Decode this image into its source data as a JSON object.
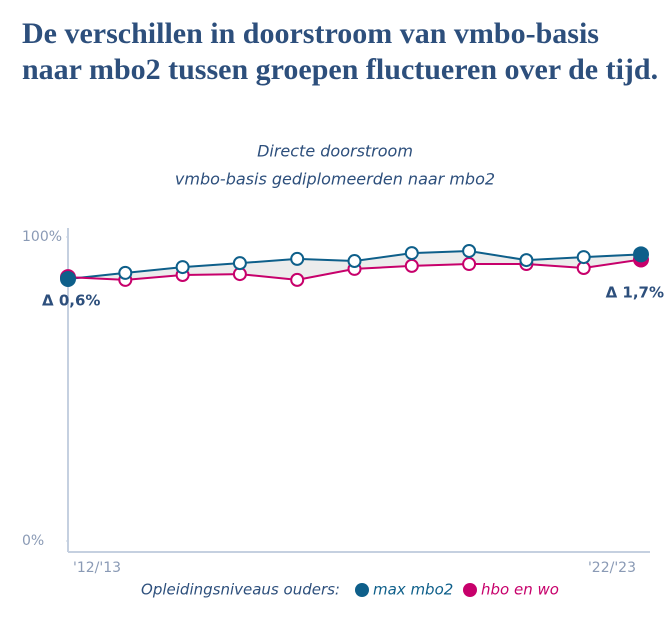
{
  "chart_data": {
    "type": "line",
    "title": "De verschillen in doorstroom van vmbo-basis naar mbo2 tussen groepen fluctueren over de tijd.",
    "subtitle": [
      "Directe doorstroom",
      "vmbo-basis gediplomeerden naar mbo2"
    ],
    "categories": [
      "'12/'13",
      null,
      null,
      null,
      null,
      null,
      null,
      null,
      null,
      null,
      "'22/'23"
    ],
    "series": [
      {
        "name": "max mbo2",
        "color": "#0e5f8a",
        "values": [
          86.2,
          88.2,
          90.1,
          91.4,
          92.8,
          92.1,
          94.7,
          95.4,
          92.4,
          93.4,
          94.3
        ]
      },
      {
        "name": "hbo en wo",
        "color": "#c7006b",
        "values": [
          86.8,
          85.9,
          87.5,
          87.8,
          85.9,
          89.5,
          90.5,
          91.1,
          91.1,
          89.8,
          92.6
        ]
      }
    ],
    "ylim": [
      0,
      100
    ],
    "yticks": [
      {
        "value": 0,
        "label": "0%"
      },
      {
        "value": 100,
        "label": "100%"
      }
    ],
    "legend_title": "Opleidingsniveaus ouders:",
    "annotations": [
      "Δ 0,6%",
      "Δ 1,7%"
    ]
  }
}
